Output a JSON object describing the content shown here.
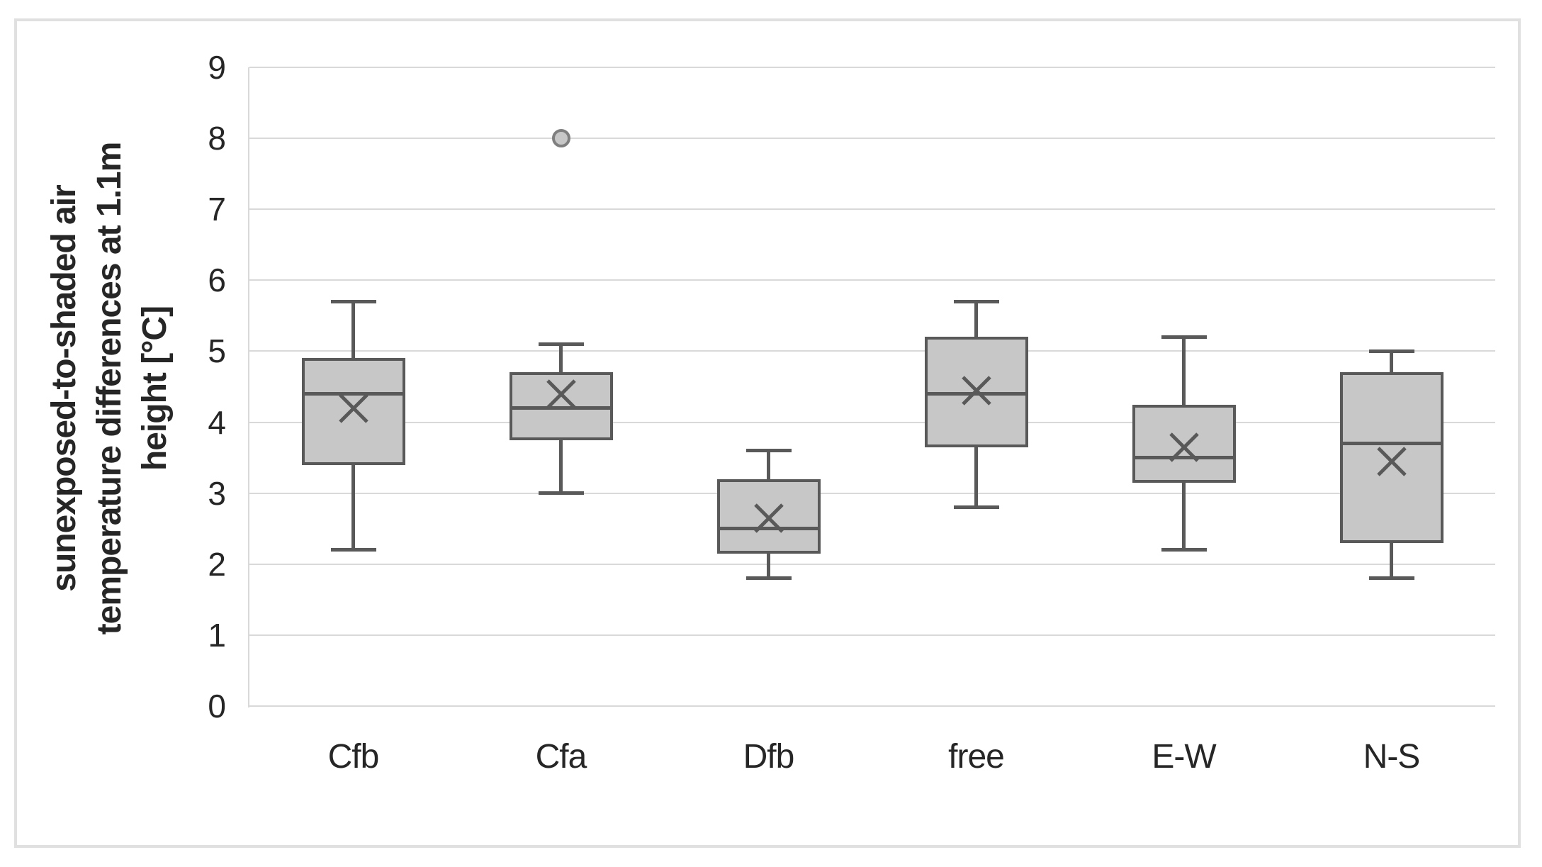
{
  "chart_data": {
    "type": "box",
    "title": "",
    "ylabel_lines": [
      "sunexposed-to-shaded air",
      "temperature differences at 1.1m",
      "height [°C]"
    ],
    "y_axis": {
      "min": 0,
      "max": 9,
      "step": 1,
      "tick_labels": [
        "0",
        "1",
        "2",
        "3",
        "4",
        "5",
        "6",
        "7",
        "8",
        "9"
      ],
      "grid": true
    },
    "categories": [
      "Cfb",
      "Cfa",
      "Dfb",
      "free",
      "E-W",
      "N-S"
    ],
    "series": [
      {
        "category": "Cfb",
        "min": 2.2,
        "q1": 3.4,
        "median": 4.4,
        "q3": 4.9,
        "max": 5.7,
        "mean": 4.2,
        "outliers": []
      },
      {
        "category": "Cfa",
        "min": 3.0,
        "q1": 3.75,
        "median": 4.2,
        "q3": 4.7,
        "max": 5.1,
        "mean": 4.4,
        "outliers": [
          8.0
        ]
      },
      {
        "category": "Dfb",
        "min": 1.8,
        "q1": 2.15,
        "median": 2.5,
        "q3": 3.2,
        "max": 3.6,
        "mean": 2.65,
        "outliers": []
      },
      {
        "category": "free",
        "min": 2.8,
        "q1": 3.65,
        "median": 4.4,
        "q3": 5.2,
        "max": 5.7,
        "mean": 4.45,
        "outliers": []
      },
      {
        "category": "E-W",
        "min": 2.2,
        "q1": 3.15,
        "median": 3.5,
        "q3": 4.25,
        "max": 5.2,
        "mean": 3.65,
        "outliers": []
      },
      {
        "category": "N-S",
        "min": 1.8,
        "q1": 2.3,
        "median": 3.7,
        "q3": 4.7,
        "max": 5.0,
        "mean": 3.45,
        "outliers": []
      }
    ],
    "legend": null,
    "colors": {
      "box_fill": "#c7c7c7",
      "box_stroke": "#595959",
      "gridline": "#d9d9d9",
      "text": "#262626",
      "outlier_stroke": "#7f7f7f",
      "figure_border": "#e0e0e0",
      "background": "#ffffff"
    }
  }
}
